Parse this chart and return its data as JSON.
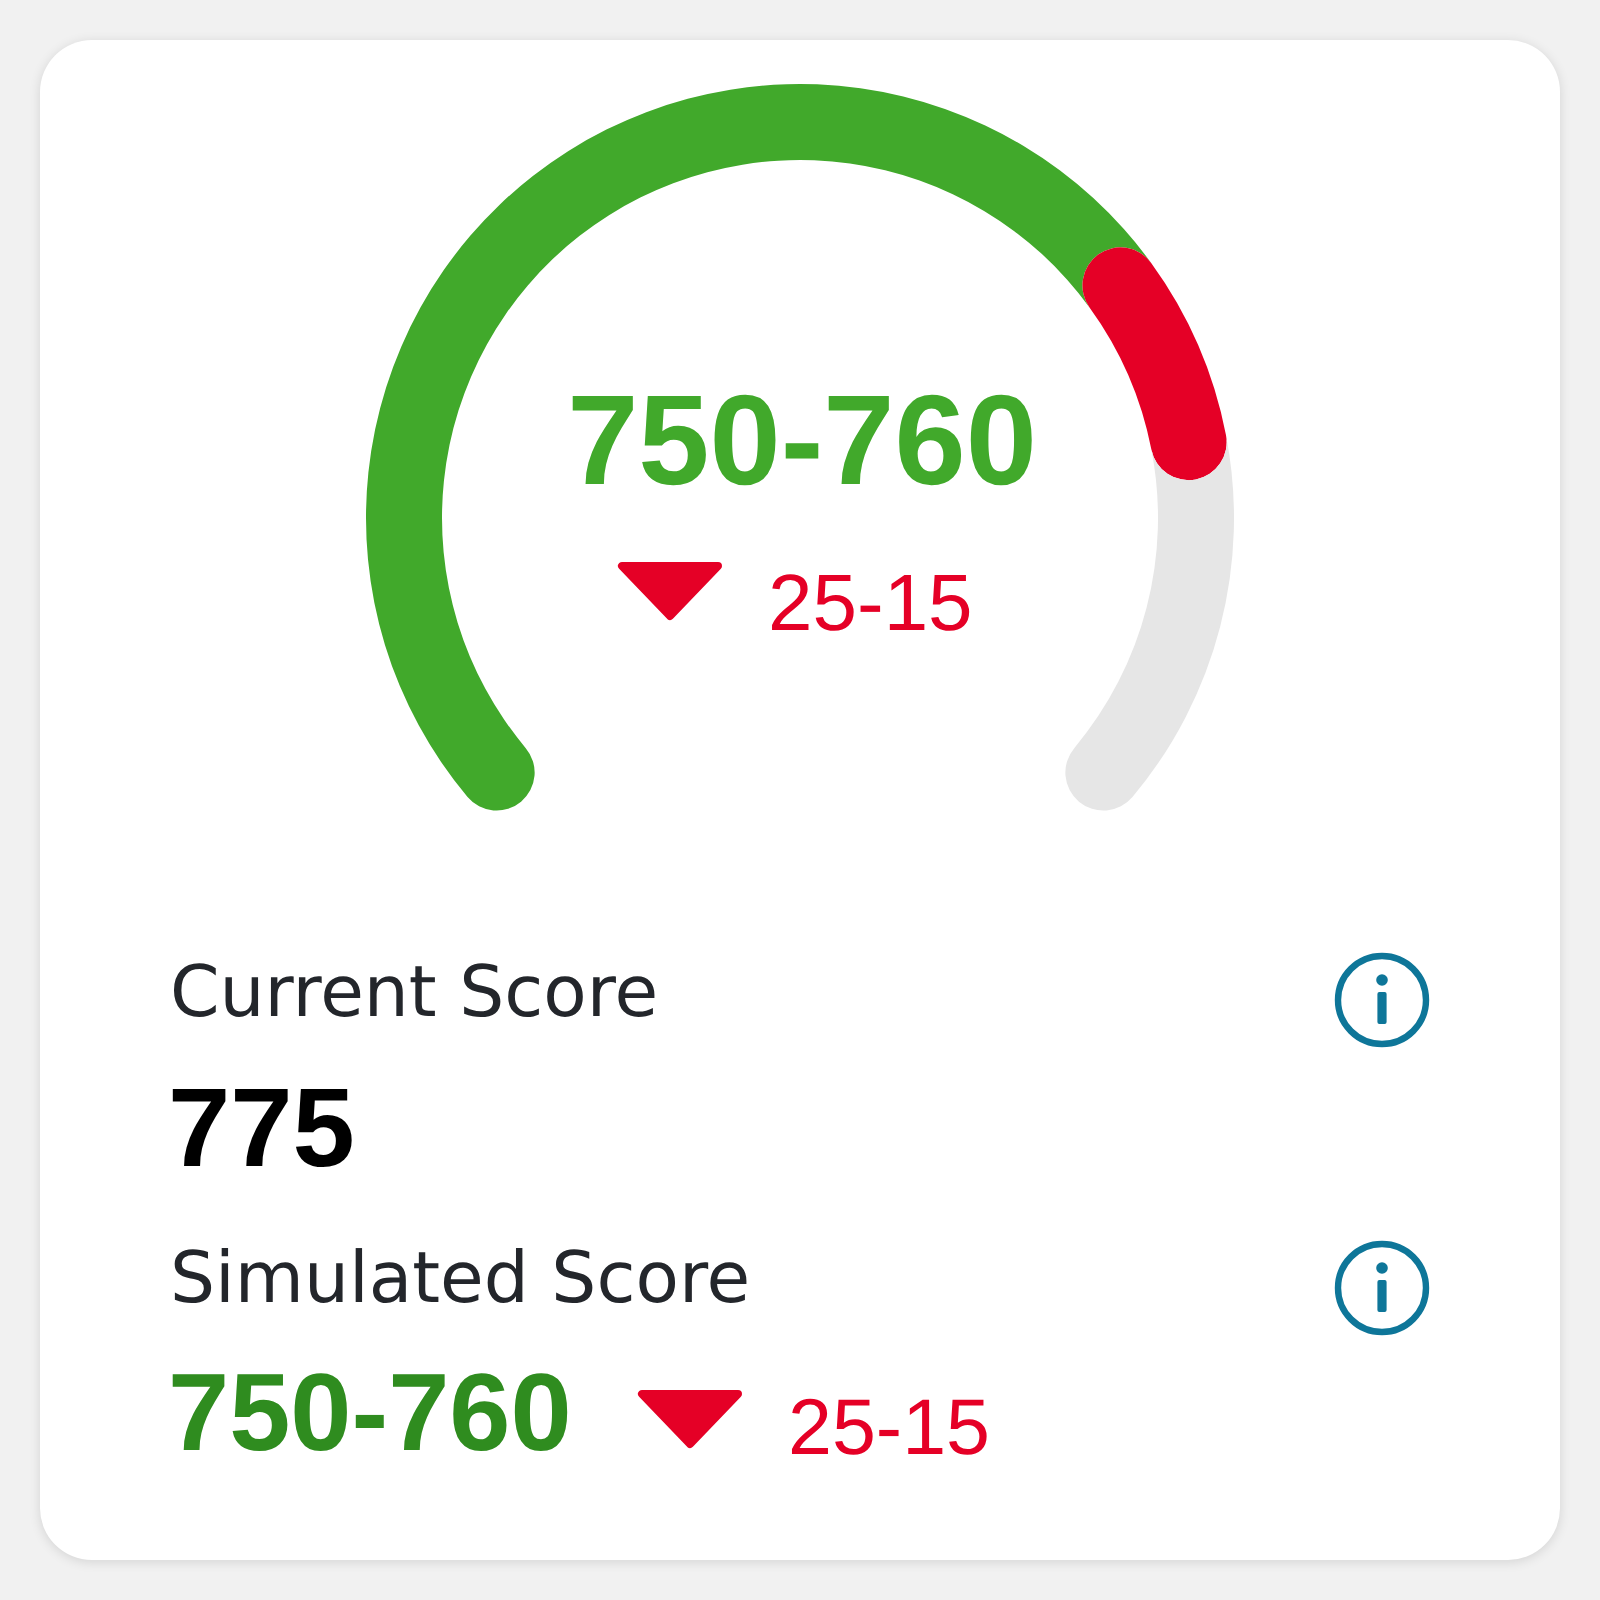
{
  "chart_data": [
    {
      "type": "donut",
      "categories": [
        null,
        null,
        null
      ],
      "values": [
        68.5,
        12.5,
        19
      ],
      "colors": [
        "#41a92b",
        "#e50026",
        "#e6e6e6"
      ],
      "annotations": [
        "750-760",
        "25-15"
      ]
    },
    {
      "type": "other",
      "annotations": [
        "Current Score",
        "775",
        "Simulated Score",
        "750-760",
        "25-15"
      ]
    }
  ]
}
